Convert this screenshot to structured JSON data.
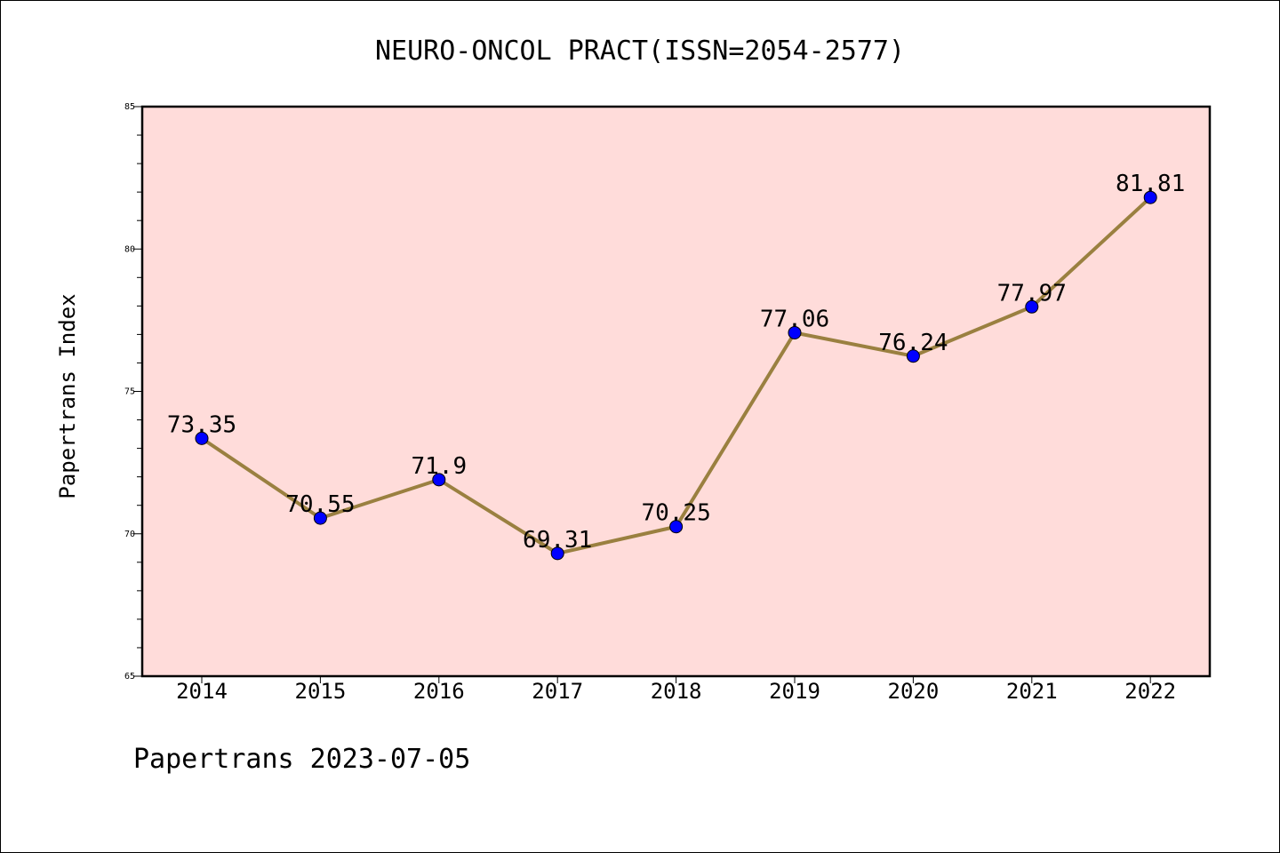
{
  "chart_data": {
    "type": "line",
    "title": "NEURO-ONCOL PRACT(ISSN=2054-2577)",
    "xlabel": "",
    "ylabel": "Papertrans Index",
    "categories": [
      "2014",
      "2015",
      "2016",
      "2017",
      "2018",
      "2019",
      "2020",
      "2021",
      "2022"
    ],
    "values": [
      73.35,
      70.55,
      71.9,
      69.31,
      70.25,
      77.06,
      76.24,
      77.97,
      81.81
    ],
    "data_labels": [
      "73.35",
      "70.55",
      "71.9",
      "69.31",
      "70.25",
      "77.06",
      "76.24",
      "77.97",
      "81.81"
    ],
    "ylim": [
      65,
      85
    ],
    "yticks": [
      65,
      70,
      75,
      80,
      85
    ],
    "ytick_labels": [
      "65",
      "70",
      "75",
      "80",
      "85"
    ],
    "grid": false,
    "colors": {
      "plot_background": "#FFDCDA",
      "line": "#9A8040",
      "marker": "#0000FF",
      "axis": "#000000"
    }
  },
  "footer": "Papertrans 2023-07-05"
}
